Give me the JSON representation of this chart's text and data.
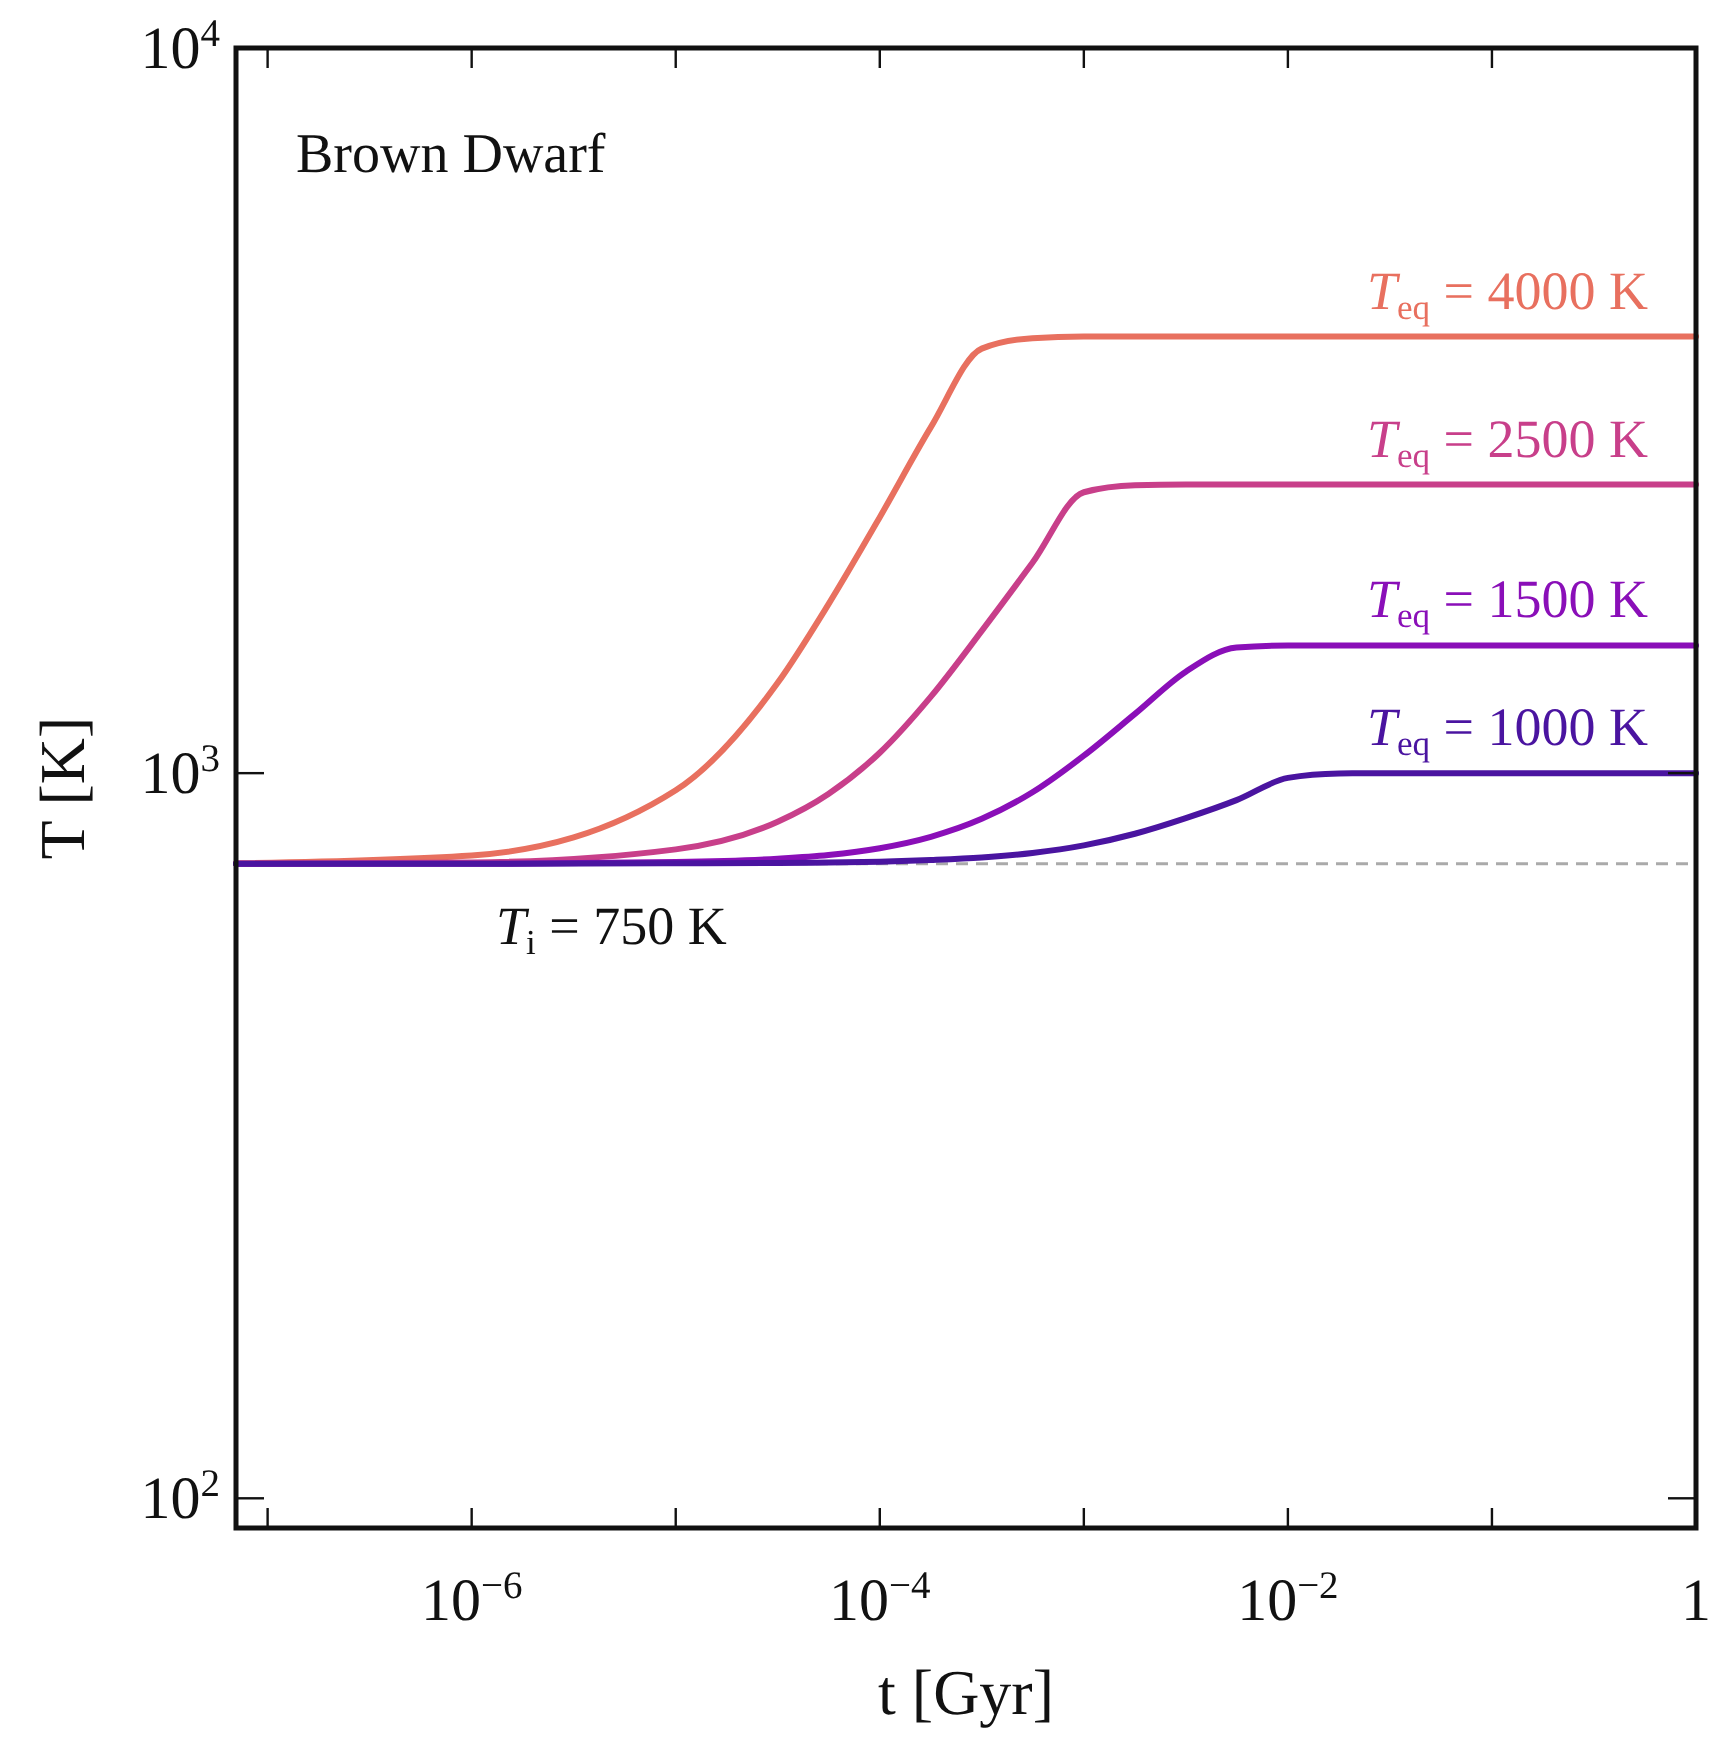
{
  "chart_data": {
    "type": "line",
    "annotations": [
      "Brown Dwarf"
    ],
    "xlabel": "t [Gyr]",
    "ylabel": "T [K]",
    "log": "xy",
    "grid": false,
    "marker": "none",
    "line_style": "solid",
    "xlim": [
      7e-08,
      1
    ],
    "ylim": [
      91,
      10000
    ],
    "xticks": [
      {
        "value": 1e-07,
        "label": null
      },
      {
        "value": 1e-06,
        "label": "10$^{−6}$"
      },
      {
        "value": 1e-05,
        "label": null
      },
      {
        "value": 0.0001,
        "label": "10$^{−4}$"
      },
      {
        "value": 0.001,
        "label": null
      },
      {
        "value": 0.01,
        "label": "10$^{−2}$"
      },
      {
        "value": 0.1,
        "label": null
      },
      1
    ],
    "yticks": [
      {
        "value": 100,
        "label": "10$^{2}$"
      },
      {
        "value": 1000,
        "label": "10$^{3}$"
      },
      {
        "value": 10000,
        "label": "10$^{4}$"
      }
    ],
    "x": [
      7e-08,
      1e-06,
      1e-05,
      3.16e-05,
      5.6e-05,
      0.0001,
      0.000178,
      0.000316,
      0.00056,
      0.001,
      0.00178,
      0.00316,
      0.0056,
      0.01,
      0.0178,
      0.0316,
      0.1,
      1
    ],
    "series": [
      {
        "name": "T$_{eq}$ = 4000 K",
        "color": "#e8705f",
        "values": [
          751,
          770,
          947,
          1332,
          1709,
          2254,
          3000,
          3850,
          3980,
          4000,
          4000,
          4000,
          4000,
          4000,
          4000,
          4000,
          4000,
          4000
        ]
      },
      {
        "name": "T$_{eq}$ = 2500 K",
        "color": "#c83f8a",
        "values": [
          750,
          753,
          785,
          857,
          936,
          1067,
          1275,
          1571,
          1950,
          2440,
          2495,
          2500,
          2500,
          2500,
          2500,
          2500,
          2500,
          2500
        ]
      },
      {
        "name": "T$_{eq}$ = 1500 K",
        "color": "#8a0fb8",
        "values": [
          750,
          750,
          754,
          762,
          771,
          788,
          817,
          865,
          941,
          1057,
          1207,
          1380,
          1490,
          1500,
          1500,
          1500,
          1500,
          1500
        ]
      },
      {
        "name": "T$_{eq}$ = 1000 K",
        "color": "#4a14a0",
        "values": [
          750,
          750,
          751,
          752,
          753,
          755,
          759,
          765,
          776,
          795,
          825,
          867,
          918,
          985,
          999,
          1000,
          1000,
          1000
        ]
      }
    ],
    "ref_lines": [
      {
        "axis": "y",
        "value": 750,
        "label": "T$_{i}$ = 750 K",
        "color": "#aaaaaa",
        "line_style": "dashed"
      }
    ]
  }
}
